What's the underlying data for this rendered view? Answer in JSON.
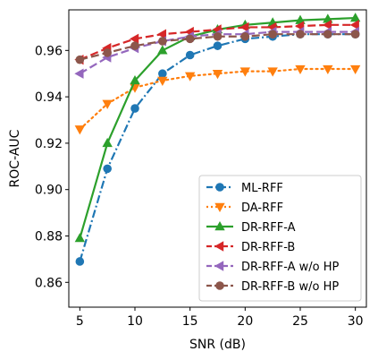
{
  "chart_data": {
    "type": "line",
    "xlabel": "SNR (dB)",
    "ylabel": "ROC-AUC",
    "xlim": [
      4.0,
      31.0
    ],
    "ylim": [
      0.8493,
      0.9775
    ],
    "xticks": [
      5,
      10,
      15,
      20,
      25,
      30
    ],
    "yticks": [
      0.86,
      0.88,
      0.9,
      0.92,
      0.94,
      0.96
    ],
    "ytick_labels": [
      "0.86",
      "0.88",
      "0.90",
      "0.92",
      "0.94",
      "0.96"
    ],
    "grid": false,
    "legend_position": "lower-right",
    "x": [
      5,
      7.5,
      10,
      12.5,
      15,
      17.5,
      20,
      22.5,
      25,
      27.5,
      30
    ],
    "series": [
      {
        "name": "ML-RFF",
        "color": "#1f77b4",
        "line": "dashdot",
        "marker": "circle",
        "values": [
          0.869,
          0.909,
          0.935,
          0.95,
          0.958,
          0.962,
          0.965,
          0.966,
          0.967,
          0.967,
          0.967
        ]
      },
      {
        "name": "DA-RFF",
        "color": "#ff7f0e",
        "line": "dotted",
        "marker": "triangle-down",
        "values": [
          0.926,
          0.937,
          0.944,
          0.947,
          0.949,
          0.95,
          0.951,
          0.951,
          0.952,
          0.952,
          0.952
        ]
      },
      {
        "name": "DR-RFF-A",
        "color": "#2ca02c",
        "line": "solid",
        "marker": "triangle-up",
        "values": [
          0.879,
          0.92,
          0.947,
          0.96,
          0.966,
          0.969,
          0.971,
          0.972,
          0.973,
          0.9735,
          0.974
        ]
      },
      {
        "name": "DR-RFF-B",
        "color": "#d62728",
        "line": "dashed",
        "marker": "triangle-left",
        "values": [
          0.956,
          0.961,
          0.965,
          0.967,
          0.968,
          0.969,
          0.97,
          0.97,
          0.9705,
          0.971,
          0.971
        ]
      },
      {
        "name": "DR-RFF-A w/o HP",
        "color": "#9467bd",
        "line": "dashed",
        "marker": "triangle-left",
        "values": [
          0.95,
          0.957,
          0.961,
          0.964,
          0.966,
          0.967,
          0.967,
          0.968,
          0.968,
          0.968,
          0.968
        ]
      },
      {
        "name": "DR-RFF-B w/o HP",
        "color": "#8c564b",
        "line": "dashed",
        "marker": "circle",
        "values": [
          0.956,
          0.959,
          0.962,
          0.964,
          0.965,
          0.966,
          0.966,
          0.967,
          0.967,
          0.967,
          0.967
        ]
      }
    ]
  }
}
